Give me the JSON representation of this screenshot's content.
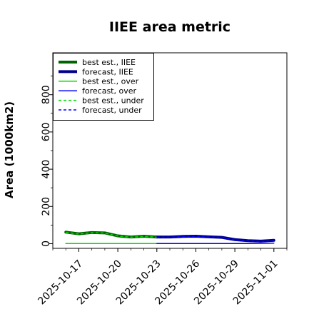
{
  "chart_data": {
    "type": "line",
    "title": "IIEE area metric",
    "ylabel": "Area (1000km2)",
    "xlabel": "",
    "ylim": [
      -25,
      1025
    ],
    "yticks": [
      0,
      200,
      400,
      600,
      800
    ],
    "xlim": [
      "2025-10-15",
      "2025-11-02"
    ],
    "xticks": [
      {
        "label": "2025-10-17",
        "color": "#000000"
      },
      {
        "label": "2025-10-20",
        "color": "#000000"
      },
      {
        "label": "2025-10-23",
        "color": "#228b22"
      },
      {
        "label": "2025-10-26",
        "color": "#000000"
      },
      {
        "label": "2025-10-29",
        "color": "#000000"
      },
      {
        "label": "2025-11-01",
        "color": "#000000"
      }
    ],
    "legend_position": "top-left",
    "grid": false,
    "series": [
      {
        "name": "best est., IIEE",
        "color": "#006400",
        "width": 4,
        "dash": "",
        "x": [
          "2025-10-16",
          "2025-10-17",
          "2025-10-18",
          "2025-10-19",
          "2025-10-20",
          "2025-10-21",
          "2025-10-22",
          "2025-10-23"
        ],
        "values": [
          62,
          53,
          60,
          58,
          42,
          36,
          40,
          36
        ]
      },
      {
        "name": "forecast, IIEE",
        "color": "#00008b",
        "width": 4,
        "dash": "",
        "x": [
          "2025-10-23",
          "2025-10-24",
          "2025-10-25",
          "2025-10-26",
          "2025-10-27",
          "2025-10-28",
          "2025-10-29",
          "2025-10-30",
          "2025-10-31",
          "2025-11-01"
        ],
        "values": [
          36,
          36,
          39,
          40,
          37,
          34,
          22,
          16,
          14,
          18
        ]
      },
      {
        "name": "best est., over",
        "color": "#00dd00",
        "width": 1.5,
        "dash": "",
        "x": [
          "2025-10-16",
          "2025-10-17",
          "2025-10-18",
          "2025-10-19",
          "2025-10-20",
          "2025-10-21",
          "2025-10-22",
          "2025-10-23"
        ],
        "values": [
          1,
          1,
          1,
          1,
          1,
          1,
          1,
          1
        ]
      },
      {
        "name": "forecast, over",
        "color": "#0000ff",
        "width": 1.5,
        "dash": "",
        "x": [
          "2025-10-23",
          "2025-10-24",
          "2025-10-25",
          "2025-10-26",
          "2025-10-27",
          "2025-10-28",
          "2025-10-29",
          "2025-10-30",
          "2025-10-31",
          "2025-11-01"
        ],
        "values": [
          1,
          1,
          1,
          1,
          1,
          1,
          1,
          1,
          2,
          3
        ]
      },
      {
        "name": "best est., under",
        "color": "#00dd00",
        "width": 1.5,
        "dash": "4,3",
        "x": [
          "2025-10-16",
          "2025-10-17",
          "2025-10-18",
          "2025-10-19",
          "2025-10-20",
          "2025-10-21",
          "2025-10-22",
          "2025-10-23"
        ],
        "values": [
          61,
          52,
          59,
          57,
          41,
          35,
          39,
          35
        ]
      },
      {
        "name": "forecast, under",
        "color": "#0000ff",
        "width": 1.5,
        "dash": "4,3",
        "x": [
          "2025-10-23",
          "2025-10-24",
          "2025-10-25",
          "2025-10-26",
          "2025-10-27",
          "2025-10-28",
          "2025-10-29",
          "2025-10-30",
          "2025-10-31",
          "2025-11-01"
        ],
        "values": [
          35,
          35,
          38,
          39,
          36,
          33,
          21,
          14,
          11,
          14
        ]
      }
    ]
  }
}
